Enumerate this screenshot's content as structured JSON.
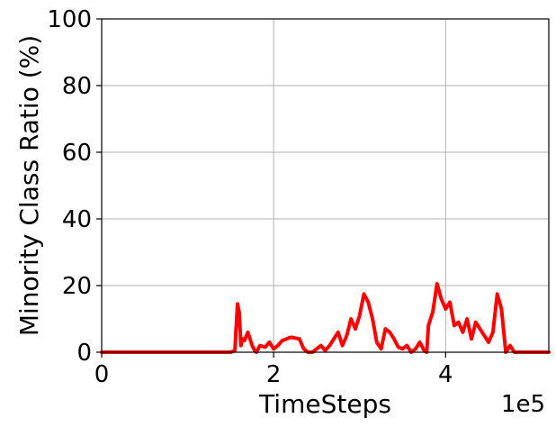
{
  "chart_data": {
    "type": "line",
    "title": "",
    "xlabel": "TimeSteps",
    "ylabel": "Minority Class Ratio (%)",
    "x_offset_label": "1e5",
    "xlim": [
      0,
      5.2
    ],
    "ylim": [
      0,
      100
    ],
    "x_ticks": [
      0,
      2,
      4
    ],
    "x_tick_labels": [
      "0",
      "2",
      "4"
    ],
    "y_ticks": [
      0,
      20,
      40,
      60,
      80,
      100
    ],
    "y_tick_labels": [
      "0",
      "20",
      "40",
      "60",
      "80",
      "100"
    ],
    "grid": true,
    "legend": "none",
    "series": [
      {
        "color": "#ff0000",
        "x": [
          0,
          1.5,
          1.55,
          1.58,
          1.6,
          1.62,
          1.64,
          1.66,
          1.7,
          1.75,
          1.78,
          1.8,
          1.84,
          1.9,
          1.95,
          2.0,
          2.05,
          2.1,
          2.15,
          2.2,
          2.3,
          2.35,
          2.4,
          2.45,
          2.5,
          2.55,
          2.6,
          2.65,
          2.7,
          2.75,
          2.8,
          2.85,
          2.9,
          2.95,
          3.0,
          3.05,
          3.1,
          3.15,
          3.2,
          3.25,
          3.3,
          3.35,
          3.4,
          3.45,
          3.5,
          3.55,
          3.6,
          3.65,
          3.7,
          3.75,
          3.78,
          3.8,
          3.85,
          3.9,
          3.95,
          4.0,
          4.05,
          4.1,
          4.15,
          4.2,
          4.25,
          4.3,
          4.35,
          4.4,
          4.45,
          4.5,
          4.55,
          4.6,
          4.65,
          4.7,
          4.75,
          4.8,
          4.85,
          4.9,
          4.95,
          5.0,
          5.1,
          5.2
        ],
        "values": [
          0,
          0,
          0.5,
          14.5,
          12,
          2,
          4,
          3.5,
          6,
          2,
          0.5,
          0,
          2,
          1.5,
          3,
          1,
          2,
          3.5,
          4,
          4.5,
          4,
          1,
          0,
          0,
          1,
          2,
          0.5,
          2,
          4,
          6,
          2,
          5,
          10,
          7,
          11,
          17.5,
          15,
          10,
          3,
          1,
          7,
          6,
          4,
          1.5,
          1,
          2,
          0,
          1,
          3,
          0.5,
          0,
          8,
          12,
          20.5,
          16,
          13,
          15,
          8,
          9,
          6,
          10,
          4,
          9,
          7,
          5,
          3,
          6,
          17.5,
          13,
          0,
          2,
          0,
          0,
          0,
          0,
          0,
          0,
          0
        ]
      }
    ]
  }
}
